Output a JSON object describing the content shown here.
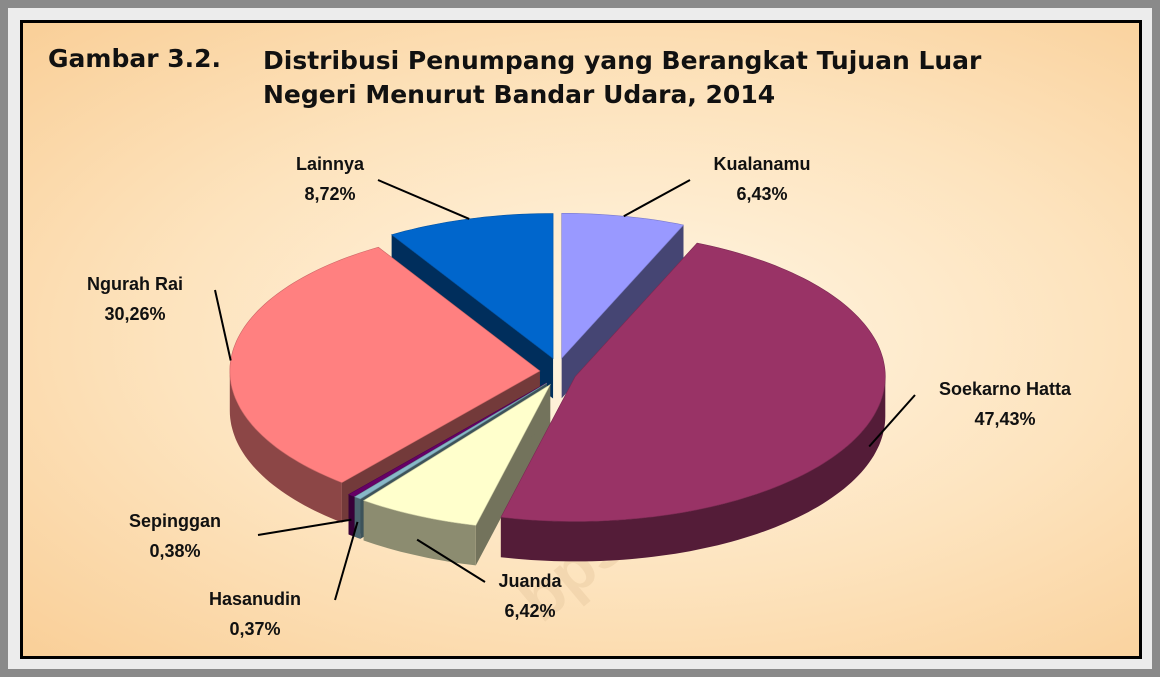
{
  "chart_data": {
    "type": "pie",
    "figure_label": "Gambar 3.2.",
    "title": "Distribusi Penumpang yang Berangkat Tujuan Luar Negeri Menurut Bandar Udara, 2014",
    "categories": [
      "Kualanamu",
      "Soekarno Hatta",
      "Juanda",
      "Hasanudin",
      "Sepinggan",
      "Ngurah Rai",
      "Lainnya"
    ],
    "values": [
      6.43,
      47.43,
      6.42,
      0.37,
      0.38,
      30.26,
      8.72
    ],
    "value_labels": [
      "6,43%",
      "47,43%",
      "6,42%",
      "0,37%",
      "0,38%",
      "30,26%",
      "8,72%"
    ],
    "colors": [
      "#9999ff",
      "#993366",
      "#ffffcc",
      "#88b8c8",
      "#660066",
      "#ff8080",
      "#0066cc"
    ],
    "watermark": "bps.go.id"
  }
}
